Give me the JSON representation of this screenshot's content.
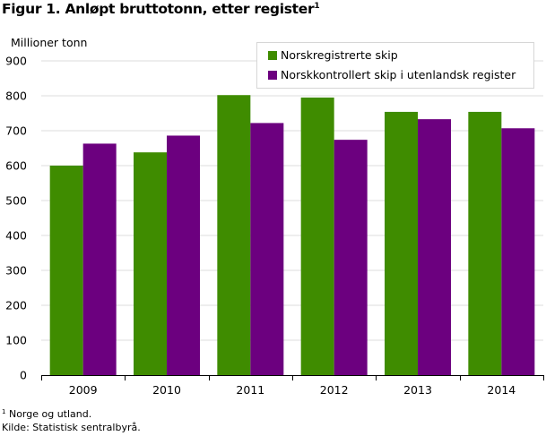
{
  "title": "Figur 1. Anløpt bruttotonn, etter register",
  "title_footnote_mark": "1",
  "footnote_mark": "1",
  "footnote": "Norge og utland.",
  "source": "Kilde: Statistisk sentralbyrå.",
  "chart_data": {
    "type": "bar",
    "ylabel": "Millioner  tonn",
    "ylim": [
      0,
      900
    ],
    "yticks": [
      0,
      100,
      200,
      300,
      400,
      500,
      600,
      700,
      800,
      900
    ],
    "categories": [
      "2009",
      "2010",
      "2011",
      "2012",
      "2013",
      "2014"
    ],
    "grid": "horizontal",
    "legend_position": "top-right",
    "series": [
      {
        "name": "Norskregistrerte skip",
        "color": "#3f8c00",
        "values": [
          600,
          638,
          802,
          795,
          754,
          754
        ]
      },
      {
        "name": "Norskkontrollert skip i utenlandsk register",
        "color": "#6c007f",
        "values": [
          663,
          686,
          722,
          674,
          733,
          707
        ]
      }
    ]
  }
}
